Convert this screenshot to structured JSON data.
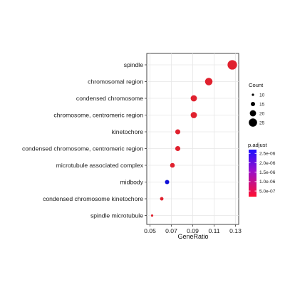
{
  "chart_data": {
    "type": "scatter",
    "title": "",
    "xlabel": "GeneRatio",
    "ylabel": "",
    "xlim": [
      0.047,
      0.133
    ],
    "xticks": [
      0.05,
      0.07,
      0.09,
      0.11,
      0.13
    ],
    "xtick_labels": [
      "0.05",
      "0.07",
      "0.09",
      "0.11",
      "0.13"
    ],
    "grid": true,
    "legend_position": "right",
    "size_legend": {
      "title": "Count",
      "values": [
        10,
        15,
        20,
        25
      ],
      "labels": [
        "10",
        "15",
        "20",
        "25"
      ]
    },
    "color_legend": {
      "title": "p.adjust",
      "ticks": [
        2.5e-06,
        2e-06,
        1.5e-06,
        1e-06,
        5e-07
      ],
      "labels": [
        "2.5e-06",
        "2.0e-06",
        "1.5e-06",
        "1.0e-06",
        "5.0e-07"
      ],
      "low_color": "#ff0000",
      "high_color": "#0000ff",
      "min": 2e-07,
      "max": 2.7e-06
    },
    "points": [
      {
        "term": "spindle",
        "gene_ratio": 0.127,
        "count": 28,
        "p_adjust": 4e-07,
        "color": "#e0212e"
      },
      {
        "term": "chromosomal region",
        "gene_ratio": 0.105,
        "count": 23,
        "p_adjust": 4e-07,
        "color": "#e0212e"
      },
      {
        "term": "condensed chromosome",
        "gene_ratio": 0.091,
        "count": 20,
        "p_adjust": 4e-07,
        "color": "#e0212e"
      },
      {
        "term": "chromosome, centromeric region",
        "gene_ratio": 0.091,
        "count": 20,
        "p_adjust": 4e-07,
        "color": "#e0212e"
      },
      {
        "term": "kinetochore",
        "gene_ratio": 0.076,
        "count": 17,
        "p_adjust": 4e-07,
        "color": "#e0212e"
      },
      {
        "term": "condensed chromosome, centromeric region",
        "gene_ratio": 0.076,
        "count": 17,
        "p_adjust": 4e-07,
        "color": "#e0212e"
      },
      {
        "term": "microtubule associated complex",
        "gene_ratio": 0.071,
        "count": 16,
        "p_adjust": 6e-07,
        "color": "#e0212e"
      },
      {
        "term": "midbody",
        "gene_ratio": 0.066,
        "count": 15,
        "p_adjust": 2.6e-06,
        "color": "#1010d8"
      },
      {
        "term": "condensed chromosome kinetochore",
        "gene_ratio": 0.061,
        "count": 13,
        "p_adjust": 4e-07,
        "color": "#e0212e"
      },
      {
        "term": "spindle microtubule",
        "gene_ratio": 0.052,
        "count": 10,
        "p_adjust": 4e-07,
        "color": "#e0212e"
      }
    ]
  }
}
